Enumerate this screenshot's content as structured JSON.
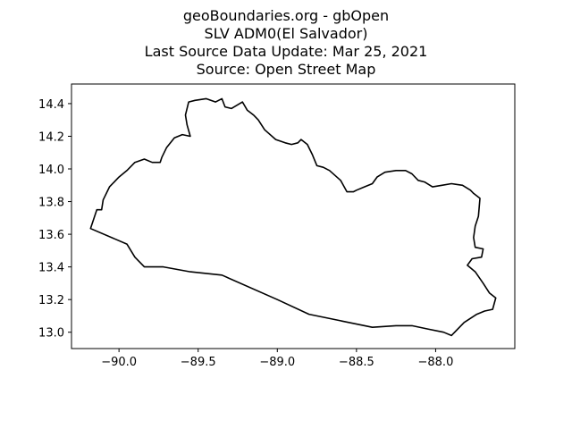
{
  "figure": {
    "title_lines": [
      "geoBoundaries.org - gbOpen",
      "SLV ADM0(El Salvador)",
      "Last Source Data Update: Mar 25, 2021",
      "Source: Open Street Map"
    ]
  },
  "chart_data": {
    "type": "map",
    "shape": "SLV ADM0 boundary",
    "xlim": [
      -90.3,
      -87.5
    ],
    "ylim": [
      12.9,
      14.52
    ],
    "x_ticks": [
      -90.0,
      -89.5,
      -89.0,
      -88.5,
      -88.0
    ],
    "x_tick_labels": [
      "−90.0",
      "−89.5",
      "−89.0",
      "−88.5",
      "−88.0"
    ],
    "y_ticks": [
      13.0,
      13.2,
      13.4,
      13.6,
      13.8,
      14.0,
      14.2,
      14.4
    ],
    "y_tick_labels": [
      "13.0",
      "13.2",
      "13.4",
      "13.6",
      "13.8",
      "14.0",
      "14.2",
      "14.4"
    ],
    "grid": false,
    "line_color": "#000000",
    "boundary": [
      [
        -90.18,
        13.635
      ],
      [
        -90.14,
        13.75
      ],
      [
        -90.11,
        13.75
      ],
      [
        -90.1,
        13.81
      ],
      [
        -90.06,
        13.89
      ],
      [
        -90.0,
        13.95
      ],
      [
        -89.95,
        13.99
      ],
      [
        -89.9,
        14.04
      ],
      [
        -89.84,
        14.06
      ],
      [
        -89.79,
        14.04
      ],
      [
        -89.74,
        14.04
      ],
      [
        -89.73,
        14.07
      ],
      [
        -89.7,
        14.13
      ],
      [
        -89.65,
        14.19
      ],
      [
        -89.6,
        14.21
      ],
      [
        -89.55,
        14.2
      ],
      [
        -89.57,
        14.27
      ],
      [
        -89.58,
        14.33
      ],
      [
        -89.56,
        14.41
      ],
      [
        -89.52,
        14.42
      ],
      [
        -89.45,
        14.43
      ],
      [
        -89.39,
        14.41
      ],
      [
        -89.35,
        14.43
      ],
      [
        -89.33,
        14.38
      ],
      [
        -89.29,
        14.37
      ],
      [
        -89.22,
        14.41
      ],
      [
        -89.19,
        14.36
      ],
      [
        -89.15,
        14.33
      ],
      [
        -89.12,
        14.3
      ],
      [
        -89.08,
        14.24
      ],
      [
        -89.01,
        14.18
      ],
      [
        -88.95,
        14.16
      ],
      [
        -88.91,
        14.15
      ],
      [
        -88.87,
        14.16
      ],
      [
        -88.85,
        14.18
      ],
      [
        -88.81,
        14.15
      ],
      [
        -88.78,
        14.09
      ],
      [
        -88.75,
        14.02
      ],
      [
        -88.71,
        14.01
      ],
      [
        -88.67,
        13.99
      ],
      [
        -88.6,
        13.93
      ],
      [
        -88.56,
        13.86
      ],
      [
        -88.52,
        13.86
      ],
      [
        -88.5,
        13.87
      ],
      [
        -88.45,
        13.89
      ],
      [
        -88.4,
        13.91
      ],
      [
        -88.37,
        13.95
      ],
      [
        -88.32,
        13.98
      ],
      [
        -88.25,
        13.99
      ],
      [
        -88.19,
        13.99
      ],
      [
        -88.15,
        13.97
      ],
      [
        -88.11,
        13.93
      ],
      [
        -88.07,
        13.92
      ],
      [
        -88.02,
        13.89
      ],
      [
        -87.96,
        13.9
      ],
      [
        -87.9,
        13.91
      ],
      [
        -87.83,
        13.9
      ],
      [
        -87.78,
        13.87
      ],
      [
        -87.76,
        13.85
      ],
      [
        -87.72,
        13.82
      ],
      [
        -87.73,
        13.71
      ],
      [
        -87.75,
        13.65
      ],
      [
        -87.76,
        13.58
      ],
      [
        -87.75,
        13.52
      ],
      [
        -87.7,
        13.51
      ],
      [
        -87.71,
        13.46
      ],
      [
        -87.77,
        13.45
      ],
      [
        -87.8,
        13.41
      ],
      [
        -87.75,
        13.37
      ],
      [
        -87.7,
        13.3
      ],
      [
        -87.66,
        13.24
      ],
      [
        -87.62,
        13.21
      ],
      [
        -87.64,
        13.14
      ],
      [
        -87.69,
        13.13
      ],
      [
        -87.74,
        13.11
      ],
      [
        -87.82,
        13.06
      ],
      [
        -87.9,
        12.98
      ],
      [
        -87.95,
        13.0
      ],
      [
        -88.05,
        13.02
      ],
      [
        -88.15,
        13.04
      ],
      [
        -88.25,
        13.04
      ],
      [
        -88.4,
        13.03
      ],
      [
        -88.6,
        13.07
      ],
      [
        -88.8,
        13.11
      ],
      [
        -89.0,
        13.2
      ],
      [
        -89.35,
        13.35
      ],
      [
        -89.55,
        13.37
      ],
      [
        -89.72,
        13.4
      ],
      [
        -89.84,
        13.4
      ],
      [
        -89.9,
        13.46
      ],
      [
        -89.95,
        13.54
      ],
      [
        -90.18,
        13.635
      ]
    ]
  }
}
